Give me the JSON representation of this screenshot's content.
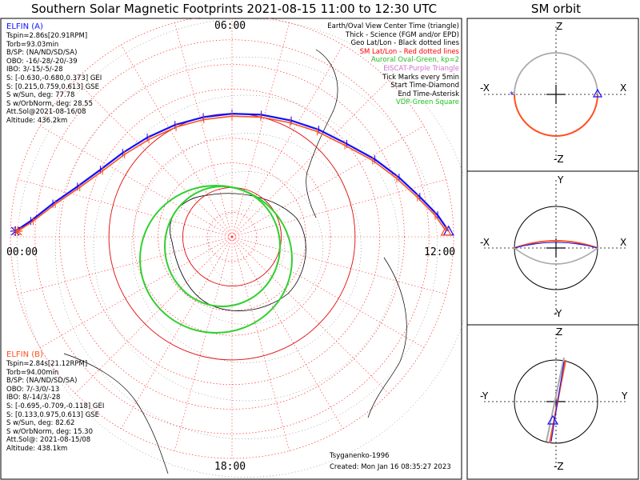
{
  "title": "Southern Solar Magnetic Footprints 2021-08-15 11:00 to 12:30 UTC",
  "sm_title": "SM orbit",
  "hour_labels": {
    "top": "06:00",
    "left": "00:00",
    "right": "12:00",
    "bottom": "18:00"
  },
  "elfin_a": {
    "name": "ELFIN (A)",
    "color": "#1010ff",
    "lines": [
      "Tspin=2.86s[20.91RPM]",
      "Torb=93.03min",
      "B/SP: (NA/ND/SD/SA)",
      "OBO: -16/-28/-20/-39",
      "IBO: 3/-15/-5/-28",
      "S: [-0.630,-0.680,0.373] GEI",
      "S: [0.215,0.759,0.613] GSE",
      "S w/Sun, deg: 77.78",
      "S w/OrbNorm, deg: 28.55",
      "Att.Sol@2021-08-16/08",
      "Altitude: 436.2km"
    ]
  },
  "elfin_b": {
    "name": "ELFIN (B)",
    "color": "#ff5020",
    "lines": [
      "Tspin=2.84s[21.12RPM]",
      "Torb=94.00min",
      "B/SP: (NA/ND/SD/SA)",
      "OBO: 7/-3/0/-13",
      "IBO: 8/-14/3/-28",
      "S: [-0.695,-0.709,-0.118] GEI",
      "S: [0.133,0.975,0.613] GSE",
      "S w/Sun, deg: 82.62",
      "S w/OrbNorm, deg: 15.30",
      "Att.Sol@: 2021-08-15/08",
      "Altitude: 438.1km"
    ]
  },
  "legend": [
    {
      "text": "Earth/Oval View Center Time (triangle)",
      "color": "#000000"
    },
    {
      "text": "Thick - Science (FGM and/or EPD)",
      "color": "#000000"
    },
    {
      "text": "Geo Lat/Lon - Black dotted lines",
      "color": "#000000"
    },
    {
      "text": "SM Lat/Lon - Red dotted lines",
      "color": "#ff0000"
    },
    {
      "text": "Auroral Oval-Green, kp=2",
      "color": "#20c020"
    },
    {
      "text": "EISCAT-Purple Triangle",
      "color": "#d070d0"
    },
    {
      "text": "Tick Marks every 5min",
      "color": "#000000"
    },
    {
      "text": "Start Time-Diamond",
      "color": "#000000"
    },
    {
      "text": "End Time-Asterisk",
      "color": "#000000"
    },
    {
      "text": "VDP-Green Square",
      "color": "#20c020"
    }
  ],
  "credit": {
    "model": "Tsyganenko-1996",
    "created": "Created: Mon Jan 16 08:35:27 2023"
  },
  "sm_panels": [
    {
      "top": "Z",
      "bottom": "-Z",
      "left": "-X",
      "right": "X"
    },
    {
      "top": "Y",
      "bottom": "-Y",
      "left": "-X",
      "right": "X"
    },
    {
      "top": "Z",
      "bottom": "-Z",
      "left": "-Y",
      "right": "Y"
    }
  ],
  "chart_data": {
    "type": "scatter",
    "projection": "south polar, magnetic local time",
    "time_range": [
      "2021-08-15 11:00",
      "2021-08-15 12:30"
    ],
    "tick_interval_min": 5,
    "series": [
      {
        "name": "ELFIN (A)",
        "color": "#1010ff",
        "mlt_h": [
          0.1,
          0.3,
          0.7,
          1.2,
          1.8,
          2.5,
          3.3,
          4.2,
          5.1,
          6.0,
          6.9,
          7.8,
          8.6,
          9.4,
          10.1,
          10.7,
          11.2,
          11.6,
          11.9
        ],
        "colat_deg": [
          44,
          41,
          37,
          33,
          30,
          28,
          26.5,
          25.5,
          25,
          25,
          25.5,
          26.5,
          28,
          30,
          33,
          36,
          39,
          42,
          44
        ]
      },
      {
        "name": "ELFIN (B)",
        "color": "#ff5020",
        "mlt_h": [
          0.1,
          0.3,
          0.7,
          1.2,
          1.8,
          2.5,
          3.3,
          4.2,
          5.1,
          6.0,
          6.9,
          7.8,
          8.6,
          9.4,
          10.1,
          10.7,
          11.2,
          11.6,
          11.9
        ],
        "colat_deg": [
          43.5,
          40.5,
          36.5,
          32.5,
          29.5,
          27.5,
          26,
          25,
          24.5,
          24.5,
          25,
          26,
          27.5,
          29.5,
          32.5,
          35.5,
          38.5,
          41.5,
          43.5
        ]
      }
    ],
    "auroral_oval_kp": 2,
    "grid": true
  }
}
